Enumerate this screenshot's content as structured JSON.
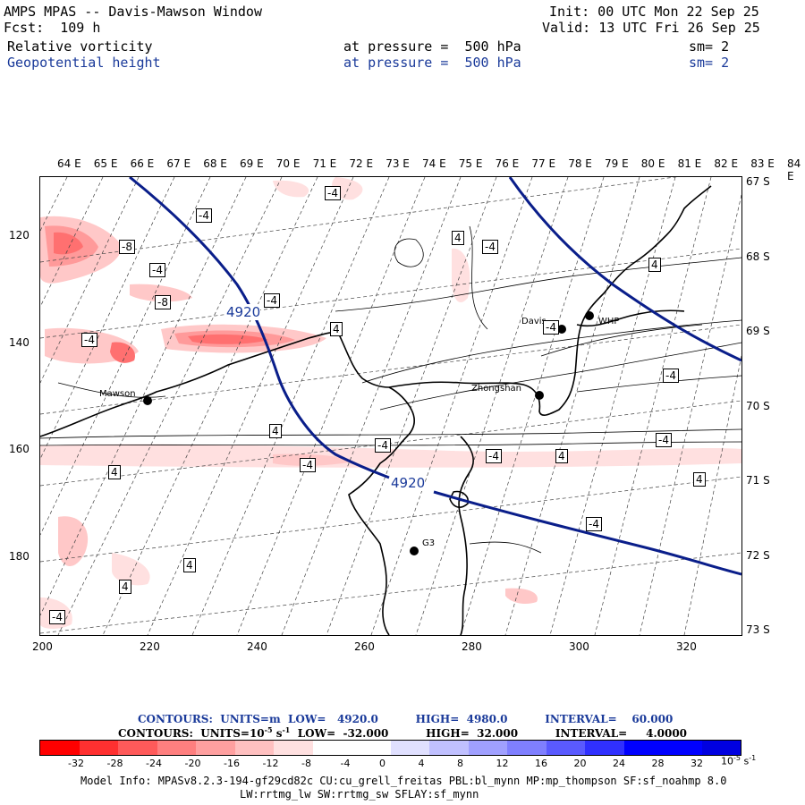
{
  "header": {
    "title": "AMPS MPAS -- Davis-Mawson Window",
    "init": "Init: 00 UTC Mon 22 Sep 25",
    "fcst": "Fcst:  109 h",
    "valid": "Valid: 13 UTC Fri 26 Sep 25",
    "field1_name": "Relative vorticity",
    "field1_level": "at pressure =  500 hPa",
    "field1_sm": "sm= 2",
    "field2_name": "Geopotential height",
    "field2_level": "at pressure =  500 hPa",
    "field2_sm": "sm= 2"
  },
  "axes": {
    "top_longitudes": [
      "64 E",
      "65 E",
      "66 E",
      "67 E",
      "68 E",
      "69 E",
      "70 E",
      "71 E",
      "72 E",
      "73 E",
      "74 E",
      "75 E",
      "76 E",
      "77 E",
      "78 E",
      "79 E",
      "80 E",
      "81 E",
      "82 E",
      "83 E",
      "84 E"
    ],
    "right_latitudes": [
      "67 S",
      "68 S",
      "69 S",
      "70 S",
      "71 S",
      "72 S",
      "73 S"
    ],
    "left_grid": [
      "120",
      "140",
      "160",
      "180"
    ],
    "bottom_grid": [
      "200",
      "220",
      "240",
      "260",
      "280",
      "300",
      "320"
    ]
  },
  "map": {
    "height_contour_labels": [
      "4920",
      "4920"
    ],
    "vort_labels": [
      "-4",
      "-8",
      "-4",
      "-8",
      "-4",
      "-4",
      "-4",
      "4",
      "-4",
      "4",
      "-4",
      "4",
      "4",
      "-4",
      "-4",
      "-4",
      "4",
      "4",
      "-4",
      "4",
      "-4",
      "4",
      "-4",
      "4",
      "-4"
    ],
    "stations": [
      "Davis",
      "WHP",
      "Zhongshan",
      "Mawson",
      "G3"
    ]
  },
  "contours": {
    "line1": "CONTOURS:  UNITS=m  LOW=   4920.0          HIGH=  4980.0          INTERVAL=    60.000",
    "line2_prefix": "CONTOURS:  UNITS=10",
    "line2_exp": "-5",
    "line2_mid": " s",
    "line2_exp2": "-1",
    "line2_suffix": "  LOW=  -32.000          HIGH=  32.000          INTERVAL=     4.0000"
  },
  "colorbar": {
    "colors": [
      "#ff0000",
      "#ff3030",
      "#ff5a5a",
      "#ff7f7f",
      "#ffa0a0",
      "#ffc0c0",
      "#ffe0e0",
      "#ffffff",
      "#ffffff",
      "#e0e0ff",
      "#c0c0ff",
      "#a0a0ff",
      "#7f7fff",
      "#5a5aff",
      "#3030ff",
      "#0000ff",
      "#0000ff",
      "#0000e0"
    ],
    "ticks": [
      "-32",
      "-28",
      "-24",
      "-20",
      "-16",
      "-12",
      "-8",
      "-4",
      "0",
      "4",
      "8",
      "12",
      "16",
      "20",
      "24",
      "28",
      "32"
    ],
    "units": "10",
    "units_exp": "-5",
    "units_s": " s",
    "units_exp2": "-1"
  },
  "model_info": {
    "line1": "Model Info: MPASv8.2.3-194-gf29cd82c CU:cu_grell_freitas PBL:bl_mynn MP:mp_thompson SF:sf_noahmp 8.0",
    "line2": "LW:rrtmg_lw SW:rrtmg_sw SFLAY:sf_mynn"
  }
}
